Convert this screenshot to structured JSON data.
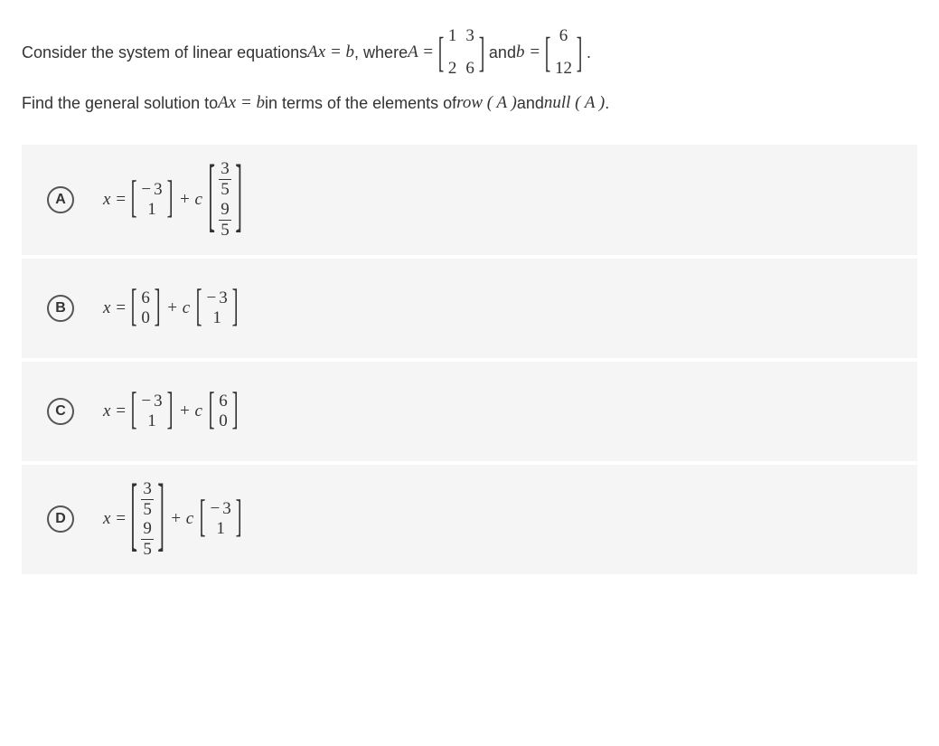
{
  "question": {
    "line1_part1": "Consider the system of linear equations ",
    "line1_eq": "Ax = b",
    "line1_part2": ", where ",
    "line1_A": "A =",
    "line1_part3": " and ",
    "line1_b": "b =",
    "line1_part4": ".",
    "line2_part1": "Find the general solution to ",
    "line2_eq": "Ax = b",
    "line2_part2": " in terms of the elements of ",
    "line2_rowA": "row ( A )",
    "line2_part3": " and ",
    "line2_nullA": "null ( A )",
    "line2_part4": " ."
  },
  "matrixA": {
    "rows": 2,
    "cols": 2,
    "values": [
      "1",
      "3",
      "2",
      "6"
    ],
    "bracket_scale_y": 2.6,
    "bracket_scale_x": 1.1
  },
  "vectorB": {
    "rows": 2,
    "cols": 1,
    "values": [
      "6",
      "12"
    ],
    "bracket_scale_y": 2.6,
    "bracket_scale_x": 1.1
  },
  "options": [
    {
      "letter": "A",
      "x_eq": "x =",
      "plus_c": "+ c",
      "vec1": {
        "rows": 2,
        "cols": 1,
        "values": [
          {
            "neg": "3"
          },
          "1"
        ],
        "bracket_scale_y": 2.6,
        "bracket_scale_x": 1.1
      },
      "vec2": {
        "rows": 2,
        "cols": 1,
        "values": [
          {
            "frac": [
              "3",
              "5"
            ]
          },
          {
            "frac": [
              "9",
              "5"
            ]
          }
        ],
        "bracket_scale_y": 4.8,
        "bracket_scale_x": 1.2
      }
    },
    {
      "letter": "B",
      "x_eq": "x =",
      "plus_c": "+ c",
      "vec1": {
        "rows": 2,
        "cols": 1,
        "values": [
          "6",
          "0"
        ],
        "bracket_scale_y": 2.6,
        "bracket_scale_x": 1.1
      },
      "vec2": {
        "rows": 2,
        "cols": 1,
        "values": [
          {
            "neg": "3"
          },
          "1"
        ],
        "bracket_scale_y": 2.6,
        "bracket_scale_x": 1.1
      }
    },
    {
      "letter": "C",
      "x_eq": "x =",
      "plus_c": "+ c",
      "vec1": {
        "rows": 2,
        "cols": 1,
        "values": [
          {
            "neg": "3"
          },
          "1"
        ],
        "bracket_scale_y": 2.6,
        "bracket_scale_x": 1.1
      },
      "vec2": {
        "rows": 2,
        "cols": 1,
        "values": [
          "6",
          "0"
        ],
        "bracket_scale_y": 2.6,
        "bracket_scale_x": 1.1
      }
    },
    {
      "letter": "D",
      "x_eq": "x =",
      "plus_c": "+ c",
      "vec1": {
        "rows": 2,
        "cols": 1,
        "values": [
          {
            "frac": [
              "3",
              "5"
            ]
          },
          {
            "frac": [
              "9",
              "5"
            ]
          }
        ],
        "bracket_scale_y": 4.8,
        "bracket_scale_x": 1.2
      },
      "vec2": {
        "rows": 2,
        "cols": 1,
        "values": [
          {
            "neg": "3"
          },
          "1"
        ],
        "bracket_scale_y": 2.6,
        "bracket_scale_x": 1.1
      }
    }
  ],
  "colors": {
    "bg_option": "#f5f5f5",
    "text": "#333333",
    "circle_border": "#555555"
  }
}
